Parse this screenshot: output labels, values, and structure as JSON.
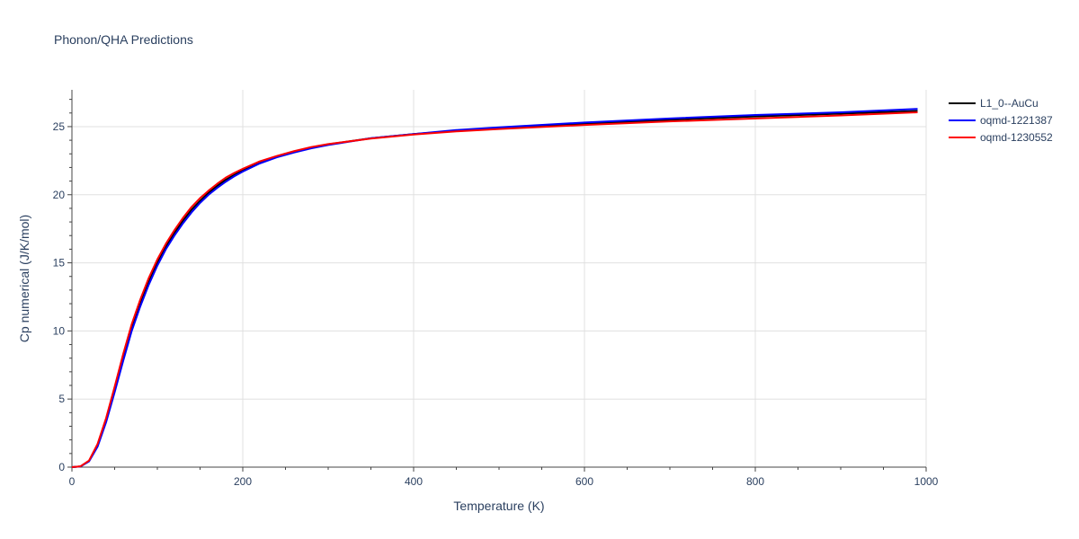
{
  "chart_data": {
    "type": "line",
    "title": "Phonon/QHA Predictions",
    "xlabel": "Temperature (K)",
    "ylabel": "Cp numerical (J/K/mol)",
    "xlim": [
      0,
      1000
    ],
    "ylim": [
      0,
      27.7
    ],
    "x_ticks": [
      0,
      200,
      400,
      600,
      800,
      1000
    ],
    "y_ticks": [
      0,
      5,
      10,
      15,
      20,
      25
    ],
    "grid": true,
    "legend_position": "top-right",
    "series": [
      {
        "name": "L1_0--AuCu",
        "color": "#000000",
        "x": [
          0,
          10,
          20,
          30,
          40,
          50,
          60,
          70,
          80,
          90,
          100,
          110,
          120,
          130,
          140,
          150,
          160,
          170,
          180,
          190,
          200,
          220,
          240,
          260,
          280,
          300,
          350,
          400,
          450,
          500,
          600,
          700,
          800,
          900,
          990
        ],
        "y": [
          0,
          0.05,
          0.45,
          1.6,
          3.4,
          5.7,
          8.0,
          10.2,
          12.0,
          13.6,
          15.0,
          16.2,
          17.2,
          18.1,
          18.9,
          19.55,
          20.15,
          20.65,
          21.1,
          21.45,
          21.8,
          22.35,
          22.8,
          23.15,
          23.45,
          23.7,
          24.15,
          24.45,
          24.7,
          24.9,
          25.2,
          25.5,
          25.75,
          25.95,
          26.15
        ]
      },
      {
        "name": "oqmd-1221387",
        "color": "#0000ff",
        "x": [
          0,
          10,
          20,
          30,
          40,
          50,
          60,
          70,
          80,
          90,
          100,
          110,
          120,
          130,
          140,
          150,
          160,
          170,
          180,
          190,
          200,
          220,
          240,
          260,
          280,
          300,
          350,
          400,
          450,
          500,
          600,
          700,
          800,
          900,
          990
        ],
        "y": [
          0,
          0.05,
          0.42,
          1.5,
          3.3,
          5.5,
          7.8,
          10.0,
          11.8,
          13.4,
          14.8,
          16.0,
          17.0,
          17.9,
          18.7,
          19.4,
          20.0,
          20.5,
          20.95,
          21.35,
          21.7,
          22.3,
          22.75,
          23.1,
          23.4,
          23.65,
          24.15,
          24.45,
          24.75,
          24.95,
          25.3,
          25.6,
          25.85,
          26.05,
          26.3
        ]
      },
      {
        "name": "oqmd-1230552",
        "color": "#ff0000",
        "x": [
          0,
          10,
          20,
          30,
          40,
          50,
          60,
          70,
          80,
          90,
          100,
          110,
          120,
          130,
          140,
          150,
          160,
          170,
          180,
          190,
          200,
          220,
          240,
          260,
          280,
          300,
          350,
          400,
          450,
          500,
          600,
          700,
          800,
          900,
          990
        ],
        "y": [
          0,
          0.06,
          0.48,
          1.7,
          3.6,
          5.9,
          8.3,
          10.5,
          12.3,
          13.9,
          15.25,
          16.4,
          17.4,
          18.3,
          19.1,
          19.75,
          20.3,
          20.8,
          21.25,
          21.6,
          21.9,
          22.45,
          22.85,
          23.2,
          23.5,
          23.72,
          24.12,
          24.42,
          24.65,
          24.82,
          25.12,
          25.38,
          25.6,
          25.82,
          26.05
        ]
      }
    ]
  }
}
